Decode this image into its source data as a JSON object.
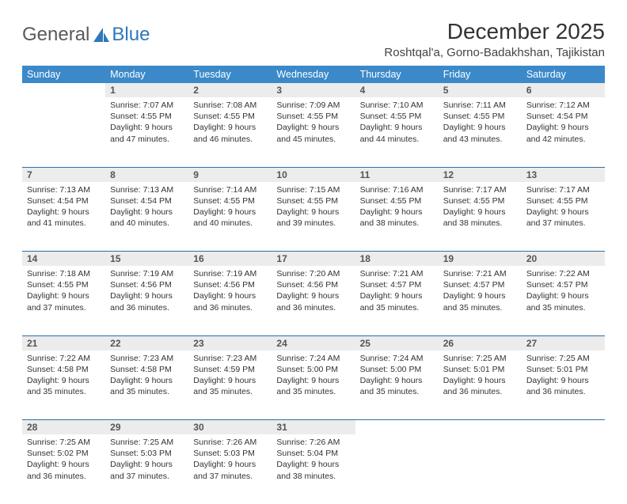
{
  "logo": {
    "text_general": "General",
    "text_blue": "Blue"
  },
  "title": "December 2025",
  "location": "Roshtqal'a, Gorno-Badakhshan, Tajikistan",
  "day_headers": [
    "Sunday",
    "Monday",
    "Tuesday",
    "Wednesday",
    "Thursday",
    "Friday",
    "Saturday"
  ],
  "colors": {
    "header_bg": "#3b89c9",
    "header_text": "#ffffff",
    "daynum_bg": "#ececec",
    "rule": "#2f6da8",
    "body_text": "#333333"
  },
  "weeks": [
    [
      null,
      {
        "n": "1",
        "sr": "7:07 AM",
        "ss": "4:55 PM",
        "dl": "9 hours and 47 minutes."
      },
      {
        "n": "2",
        "sr": "7:08 AM",
        "ss": "4:55 PM",
        "dl": "9 hours and 46 minutes."
      },
      {
        "n": "3",
        "sr": "7:09 AM",
        "ss": "4:55 PM",
        "dl": "9 hours and 45 minutes."
      },
      {
        "n": "4",
        "sr": "7:10 AM",
        "ss": "4:55 PM",
        "dl": "9 hours and 44 minutes."
      },
      {
        "n": "5",
        "sr": "7:11 AM",
        "ss": "4:55 PM",
        "dl": "9 hours and 43 minutes."
      },
      {
        "n": "6",
        "sr": "7:12 AM",
        "ss": "4:54 PM",
        "dl": "9 hours and 42 minutes."
      }
    ],
    [
      {
        "n": "7",
        "sr": "7:13 AM",
        "ss": "4:54 PM",
        "dl": "9 hours and 41 minutes."
      },
      {
        "n": "8",
        "sr": "7:13 AM",
        "ss": "4:54 PM",
        "dl": "9 hours and 40 minutes."
      },
      {
        "n": "9",
        "sr": "7:14 AM",
        "ss": "4:55 PM",
        "dl": "9 hours and 40 minutes."
      },
      {
        "n": "10",
        "sr": "7:15 AM",
        "ss": "4:55 PM",
        "dl": "9 hours and 39 minutes."
      },
      {
        "n": "11",
        "sr": "7:16 AM",
        "ss": "4:55 PM",
        "dl": "9 hours and 38 minutes."
      },
      {
        "n": "12",
        "sr": "7:17 AM",
        "ss": "4:55 PM",
        "dl": "9 hours and 38 minutes."
      },
      {
        "n": "13",
        "sr": "7:17 AM",
        "ss": "4:55 PM",
        "dl": "9 hours and 37 minutes."
      }
    ],
    [
      {
        "n": "14",
        "sr": "7:18 AM",
        "ss": "4:55 PM",
        "dl": "9 hours and 37 minutes."
      },
      {
        "n": "15",
        "sr": "7:19 AM",
        "ss": "4:56 PM",
        "dl": "9 hours and 36 minutes."
      },
      {
        "n": "16",
        "sr": "7:19 AM",
        "ss": "4:56 PM",
        "dl": "9 hours and 36 minutes."
      },
      {
        "n": "17",
        "sr": "7:20 AM",
        "ss": "4:56 PM",
        "dl": "9 hours and 36 minutes."
      },
      {
        "n": "18",
        "sr": "7:21 AM",
        "ss": "4:57 PM",
        "dl": "9 hours and 35 minutes."
      },
      {
        "n": "19",
        "sr": "7:21 AM",
        "ss": "4:57 PM",
        "dl": "9 hours and 35 minutes."
      },
      {
        "n": "20",
        "sr": "7:22 AM",
        "ss": "4:57 PM",
        "dl": "9 hours and 35 minutes."
      }
    ],
    [
      {
        "n": "21",
        "sr": "7:22 AM",
        "ss": "4:58 PM",
        "dl": "9 hours and 35 minutes."
      },
      {
        "n": "22",
        "sr": "7:23 AM",
        "ss": "4:58 PM",
        "dl": "9 hours and 35 minutes."
      },
      {
        "n": "23",
        "sr": "7:23 AM",
        "ss": "4:59 PM",
        "dl": "9 hours and 35 minutes."
      },
      {
        "n": "24",
        "sr": "7:24 AM",
        "ss": "5:00 PM",
        "dl": "9 hours and 35 minutes."
      },
      {
        "n": "25",
        "sr": "7:24 AM",
        "ss": "5:00 PM",
        "dl": "9 hours and 35 minutes."
      },
      {
        "n": "26",
        "sr": "7:25 AM",
        "ss": "5:01 PM",
        "dl": "9 hours and 36 minutes."
      },
      {
        "n": "27",
        "sr": "7:25 AM",
        "ss": "5:01 PM",
        "dl": "9 hours and 36 minutes."
      }
    ],
    [
      {
        "n": "28",
        "sr": "7:25 AM",
        "ss": "5:02 PM",
        "dl": "9 hours and 36 minutes."
      },
      {
        "n": "29",
        "sr": "7:25 AM",
        "ss": "5:03 PM",
        "dl": "9 hours and 37 minutes."
      },
      {
        "n": "30",
        "sr": "7:26 AM",
        "ss": "5:03 PM",
        "dl": "9 hours and 37 minutes."
      },
      {
        "n": "31",
        "sr": "7:26 AM",
        "ss": "5:04 PM",
        "dl": "9 hours and 38 minutes."
      },
      null,
      null,
      null
    ]
  ],
  "labels": {
    "sunrise": "Sunrise:",
    "sunset": "Sunset:",
    "daylight": "Daylight:"
  }
}
